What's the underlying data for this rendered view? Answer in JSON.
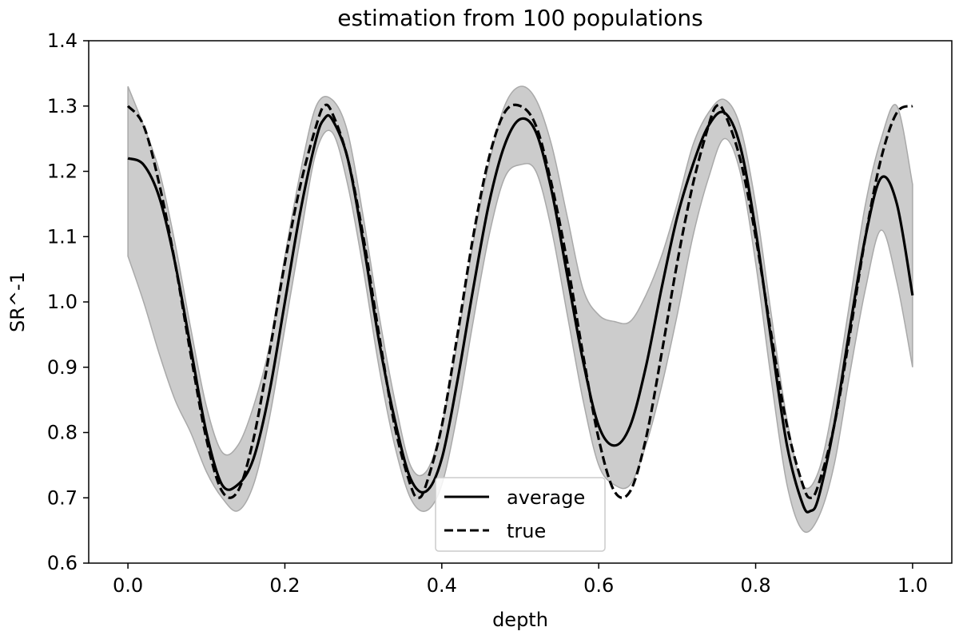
{
  "chart_data": {
    "type": "line",
    "title": "estimation from 100 populations",
    "xlabel": "depth",
    "ylabel": "SR^-1",
    "xlim": [
      -0.05,
      1.05
    ],
    "ylim": [
      0.6,
      1.4
    ],
    "xticks": [
      0.0,
      0.2,
      0.4,
      0.6,
      0.8,
      1.0
    ],
    "xtick_labels": [
      "0.0",
      "0.2",
      "0.4",
      "0.6",
      "0.8",
      "1.0"
    ],
    "yticks": [
      0.6,
      0.7,
      0.8,
      0.9,
      1.0,
      1.1,
      1.2,
      1.3,
      1.4
    ],
    "ytick_labels": [
      "0.6",
      "0.7",
      "0.8",
      "0.9",
      "1.0",
      "1.1",
      "1.2",
      "1.3",
      "1.4"
    ],
    "grid": false,
    "legend_position": "bottom-center",
    "band_color": "#cccccc",
    "band_edge_color": "#a9a9a9",
    "series": [
      {
        "name": "average",
        "style": "solid",
        "color": "#000000",
        "x": [
          0.0,
          0.02,
          0.04,
          0.06,
          0.08,
          0.1,
          0.12,
          0.14,
          0.16,
          0.18,
          0.2,
          0.22,
          0.24,
          0.25,
          0.26,
          0.28,
          0.3,
          0.32,
          0.34,
          0.36,
          0.38,
          0.4,
          0.42,
          0.44,
          0.46,
          0.48,
          0.5,
          0.52,
          0.54,
          0.56,
          0.58,
          0.6,
          0.62,
          0.64,
          0.66,
          0.68,
          0.7,
          0.72,
          0.74,
          0.76,
          0.78,
          0.8,
          0.82,
          0.84,
          0.86,
          0.87,
          0.88,
          0.9,
          0.92,
          0.94,
          0.96,
          0.98,
          1.0
        ],
        "y": [
          1.22,
          1.21,
          1.16,
          1.06,
          0.93,
          0.8,
          0.72,
          0.72,
          0.76,
          0.86,
          1.0,
          1.14,
          1.25,
          1.28,
          1.28,
          1.22,
          1.09,
          0.94,
          0.82,
          0.73,
          0.71,
          0.76,
          0.88,
          1.02,
          1.15,
          1.24,
          1.28,
          1.26,
          1.17,
          1.04,
          0.91,
          0.81,
          0.78,
          0.81,
          0.9,
          1.02,
          1.13,
          1.21,
          1.27,
          1.29,
          1.24,
          1.11,
          0.94,
          0.78,
          0.69,
          0.68,
          0.7,
          0.81,
          0.96,
          1.1,
          1.19,
          1.15,
          1.01
        ]
      },
      {
        "name": "true",
        "style": "dashed",
        "color": "#000000",
        "x": [
          0.0,
          0.02,
          0.04,
          0.06,
          0.08,
          0.1,
          0.12,
          0.14,
          0.16,
          0.18,
          0.2,
          0.22,
          0.24,
          0.25,
          0.26,
          0.28,
          0.3,
          0.32,
          0.34,
          0.36,
          0.37,
          0.38,
          0.4,
          0.42,
          0.44,
          0.46,
          0.48,
          0.5,
          0.52,
          0.54,
          0.56,
          0.58,
          0.6,
          0.62,
          0.64,
          0.66,
          0.68,
          0.7,
          0.72,
          0.74,
          0.75,
          0.76,
          0.78,
          0.8,
          0.82,
          0.84,
          0.86,
          0.87,
          0.88,
          0.9,
          0.92,
          0.94,
          0.96,
          0.98,
          1.0
        ],
        "y": [
          1.3,
          1.27,
          1.18,
          1.06,
          0.92,
          0.79,
          0.71,
          0.71,
          0.79,
          0.92,
          1.06,
          1.18,
          1.27,
          1.3,
          1.29,
          1.22,
          1.1,
          0.95,
          0.81,
          0.72,
          0.7,
          0.72,
          0.81,
          0.95,
          1.1,
          1.22,
          1.29,
          1.3,
          1.27,
          1.18,
          1.06,
          0.92,
          0.79,
          0.71,
          0.71,
          0.79,
          0.92,
          1.06,
          1.18,
          1.27,
          1.3,
          1.29,
          1.22,
          1.1,
          0.95,
          0.81,
          0.72,
          0.7,
          0.72,
          0.81,
          0.95,
          1.1,
          1.22,
          1.29,
          1.3
        ]
      }
    ],
    "band": {
      "x": [
        0.0,
        0.02,
        0.04,
        0.06,
        0.08,
        0.1,
        0.12,
        0.14,
        0.16,
        0.18,
        0.2,
        0.22,
        0.24,
        0.26,
        0.28,
        0.3,
        0.32,
        0.34,
        0.36,
        0.38,
        0.4,
        0.42,
        0.44,
        0.46,
        0.48,
        0.5,
        0.52,
        0.54,
        0.56,
        0.58,
        0.6,
        0.62,
        0.64,
        0.66,
        0.68,
        0.7,
        0.72,
        0.74,
        0.76,
        0.78,
        0.8,
        0.82,
        0.84,
        0.86,
        0.88,
        0.9,
        0.92,
        0.94,
        0.96,
        0.98,
        1.0
      ],
      "upper": [
        1.33,
        1.27,
        1.2,
        1.09,
        0.96,
        0.84,
        0.77,
        0.78,
        0.84,
        0.93,
        1.07,
        1.2,
        1.3,
        1.31,
        1.26,
        1.13,
        0.98,
        0.85,
        0.75,
        0.74,
        0.81,
        0.94,
        1.09,
        1.21,
        1.3,
        1.33,
        1.31,
        1.24,
        1.13,
        1.02,
        0.98,
        0.97,
        0.97,
        1.01,
        1.07,
        1.15,
        1.24,
        1.29,
        1.31,
        1.27,
        1.15,
        0.98,
        0.82,
        0.72,
        0.74,
        0.85,
        1.0,
        1.15,
        1.25,
        1.3,
        1.18
      ],
      "lower": [
        1.07,
        1.0,
        0.92,
        0.85,
        0.8,
        0.74,
        0.7,
        0.68,
        0.72,
        0.82,
        0.96,
        1.1,
        1.23,
        1.26,
        1.18,
        1.05,
        0.9,
        0.78,
        0.7,
        0.68,
        0.72,
        0.83,
        0.97,
        1.1,
        1.19,
        1.21,
        1.2,
        1.11,
        0.98,
        0.85,
        0.75,
        0.72,
        0.72,
        0.78,
        0.87,
        0.98,
        1.1,
        1.19,
        1.25,
        1.2,
        1.06,
        0.88,
        0.72,
        0.65,
        0.67,
        0.75,
        0.89,
        1.02,
        1.11,
        1.03,
        0.9
      ]
    }
  }
}
